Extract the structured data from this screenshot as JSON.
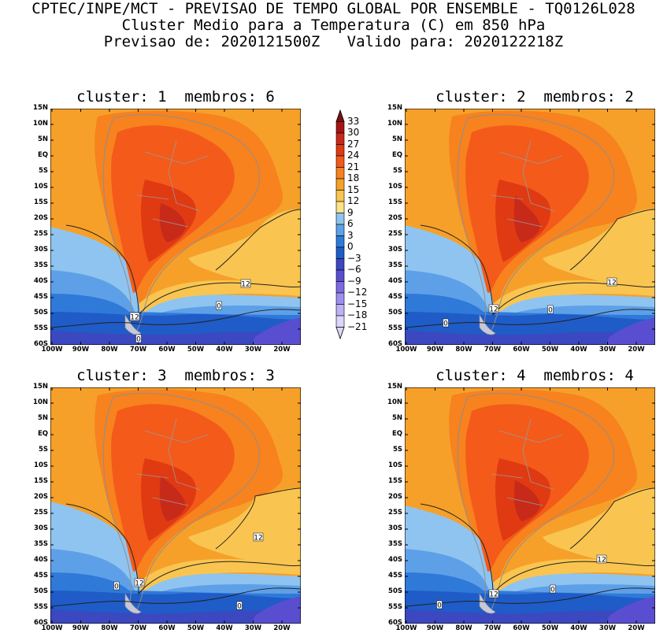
{
  "header": {
    "line1": "CPTEC/INPE/MCT - PREVISAO DE TEMPO GLOBAL POR ENSEMBLE - TQ0126L028",
    "line2": "Cluster Medio para a Temperatura (C) em 850 hPa",
    "line3": "Previsao de: 2020121500Z   Valido para: 2020122218Z"
  },
  "panels": [
    {
      "title": "cluster: 1  membros: 6",
      "labels": [
        "12",
        "12",
        "0",
        "0"
      ]
    },
    {
      "title": "cluster: 2  membros: 2",
      "labels": [
        "12",
        "12",
        "0",
        "0"
      ]
    },
    {
      "title": "cluster: 3  membros: 3",
      "labels": [
        "12",
        "12",
        "0",
        "0"
      ]
    },
    {
      "title": "cluster: 4  membros: 4",
      "labels": [
        "12",
        "12",
        "0",
        "0"
      ]
    }
  ],
  "axes": {
    "lat_ticks": [
      "15N",
      "10N",
      "5N",
      "EQ",
      "5S",
      "10S",
      "15S",
      "20S",
      "25S",
      "30S",
      "35S",
      "40S",
      "45S",
      "50S",
      "55S",
      "60S"
    ],
    "lon_ticks": [
      "100W",
      "90W",
      "80W",
      "70W",
      "60W",
      "50W",
      "40W",
      "30W",
      "20W"
    ]
  },
  "colorbar": {
    "levels": [
      "33",
      "30",
      "27",
      "24",
      "21",
      "18",
      "15",
      "12",
      "9",
      "6",
      "3",
      "0",
      "-3",
      "-6",
      "-9",
      "-12",
      "-15",
      "-18",
      "-21"
    ],
    "colors": [
      "#7a1010",
      "#a51515",
      "#c82a1a",
      "#e03a12",
      "#f45a1a",
      "#f7821e",
      "#f6a02a",
      "#f9c550",
      "#fbe38a",
      "#8fc4f0",
      "#5ea0e8",
      "#2f7ad8",
      "#1f5cc8",
      "#3b48c0",
      "#5a4ed0",
      "#7c6be0",
      "#9d8ff0",
      "#bdb2f5",
      "#ddd6fb"
    ]
  }
}
